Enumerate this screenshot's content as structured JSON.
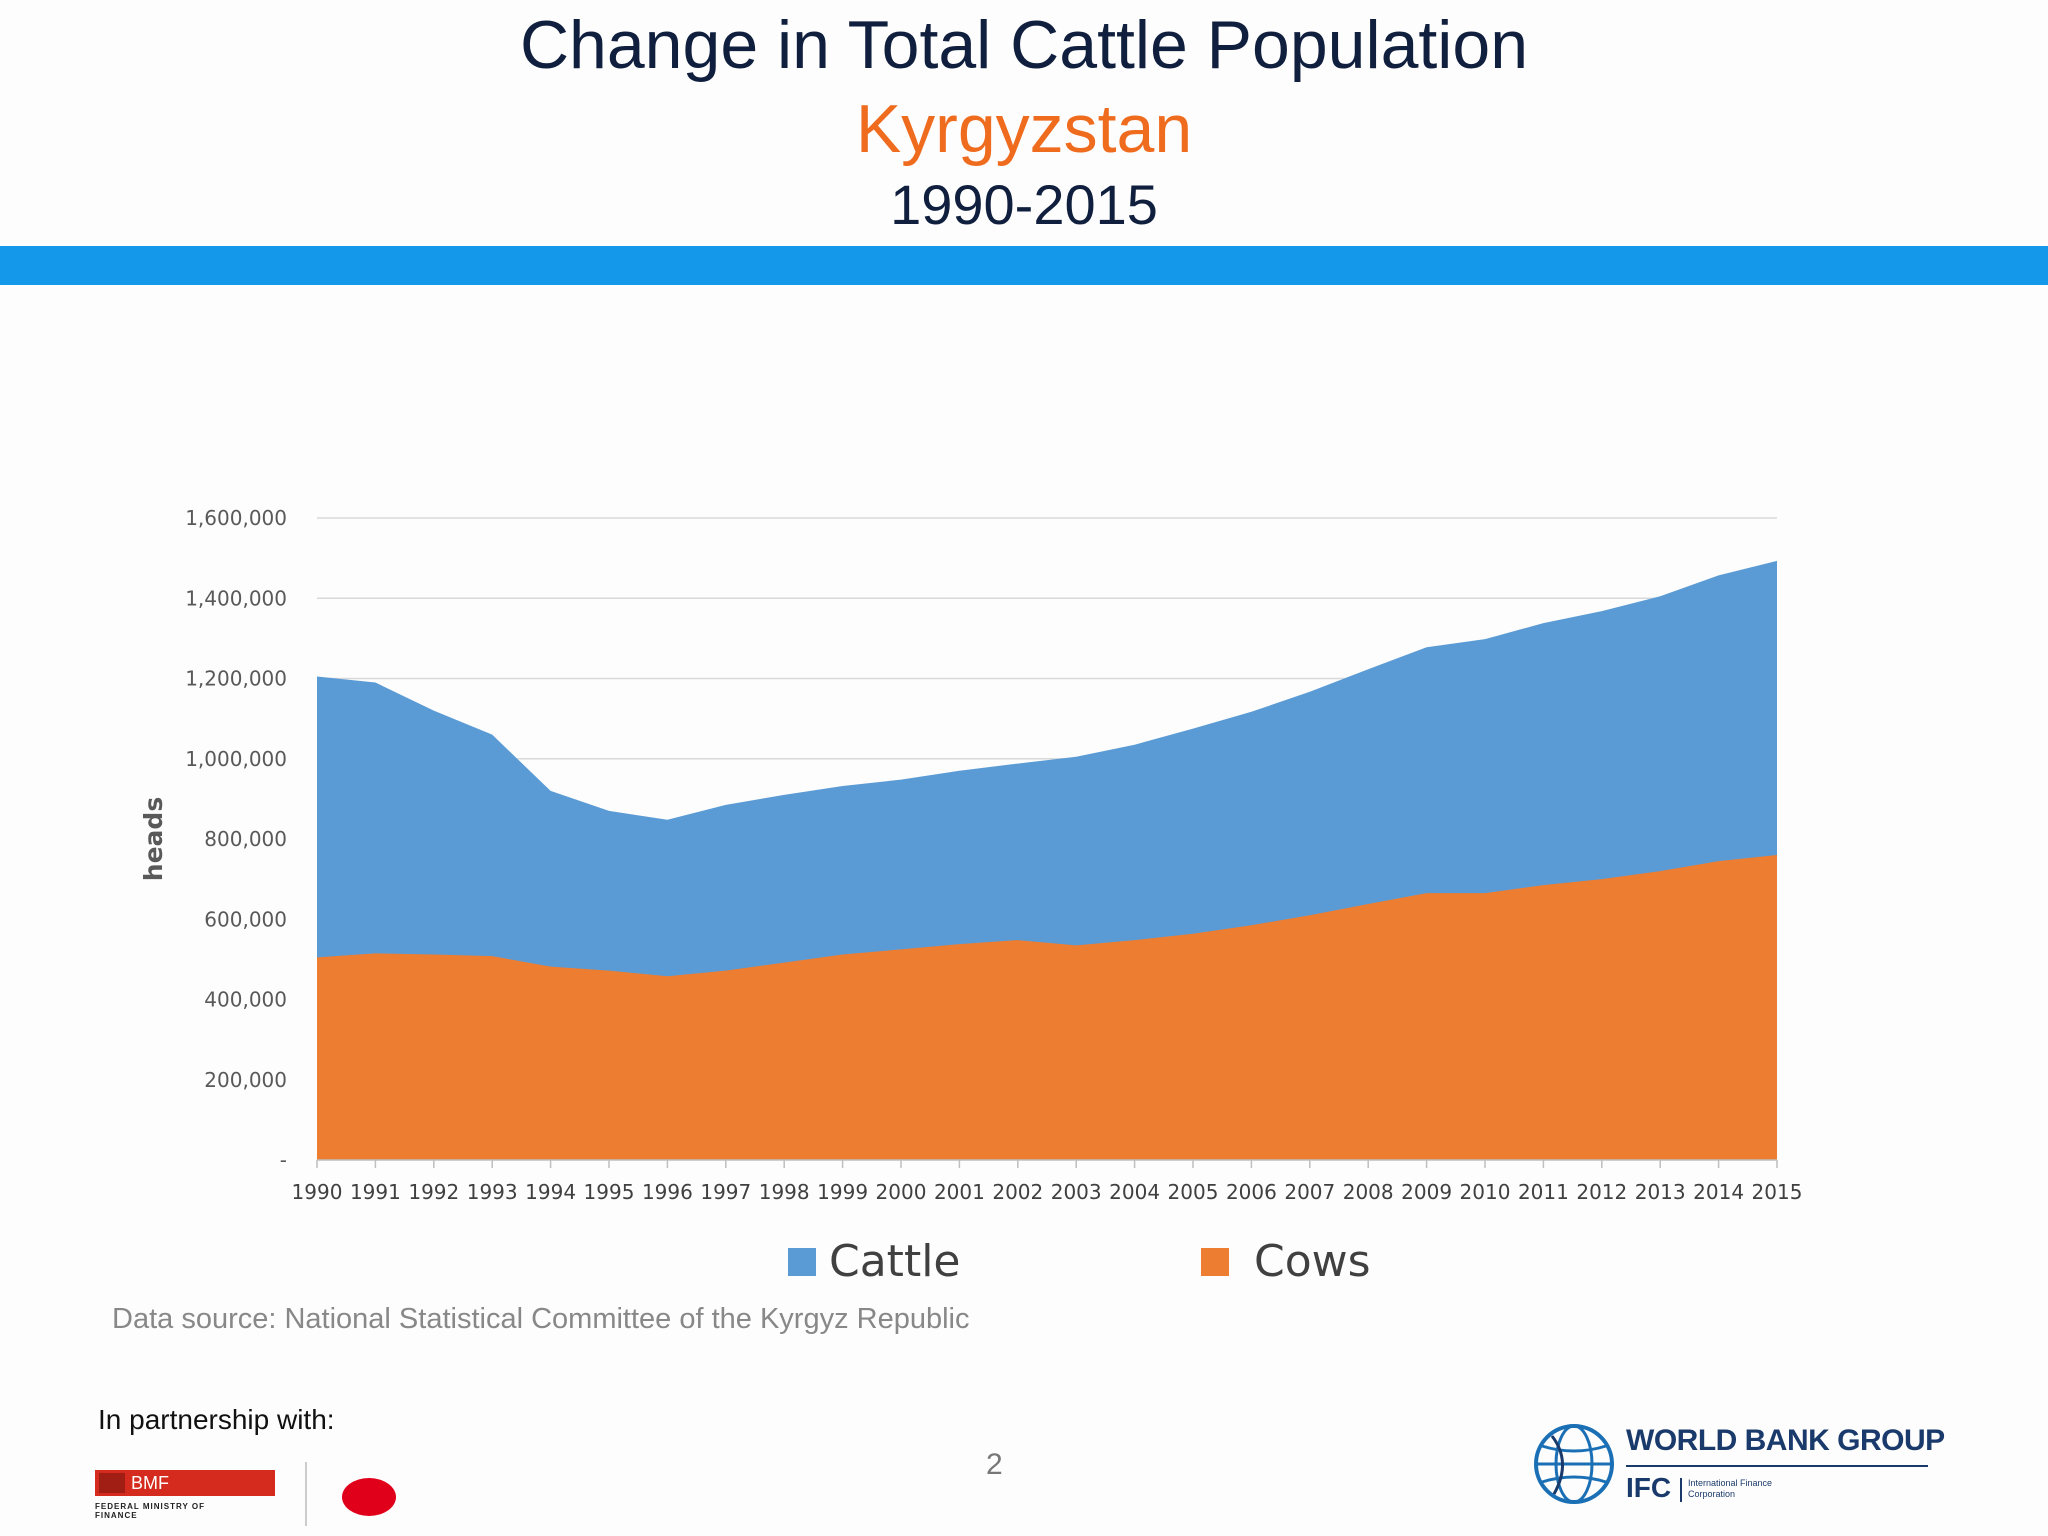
{
  "header": {
    "title": "Change in Total Cattle Population",
    "country": "Kyrgyzstan",
    "years": "1990-2015"
  },
  "colors": {
    "band": "#1499ea",
    "cattle": "#5b9bd5",
    "cows": "#ed7d31",
    "title": "#0f1f3d",
    "country": "#ef6b1e"
  },
  "chart_data": {
    "type": "area",
    "title": "",
    "xlabel": "",
    "ylabel": "heads",
    "ylim": [
      0,
      1600000
    ],
    "yticks": [
      0,
      200000,
      400000,
      600000,
      800000,
      1000000,
      1200000,
      1400000,
      1600000
    ],
    "ytick_labels": [
      "-",
      "200,000",
      "400,000",
      "600,000",
      "800,000",
      "1,000,000",
      "1,200,000",
      "1,400,000",
      "1,600,000"
    ],
    "grid": true,
    "legend_position": "bottom",
    "categories": [
      "1990",
      "1991",
      "1992",
      "1993",
      "1994",
      "1995",
      "1996",
      "1997",
      "1998",
      "1999",
      "2000",
      "2001",
      "2002",
      "2003",
      "2004",
      "2005",
      "2006",
      "2007",
      "2008",
      "2009",
      "2010",
      "2011",
      "2012",
      "2013",
      "2014",
      "2015"
    ],
    "series": [
      {
        "name": "Cattle",
        "color": "#5b9bd5",
        "values": [
          1205000,
          1190000,
          1120000,
          1060000,
          920000,
          870000,
          848000,
          885000,
          910000,
          932000,
          948000,
          970000,
          988000,
          1005000,
          1035000,
          1075000,
          1117000,
          1167000,
          1223000,
          1278000,
          1298000,
          1338000,
          1368000,
          1405000,
          1457000,
          1493000
        ]
      },
      {
        "name": "Cows",
        "color": "#ed7d31",
        "values": [
          505000,
          515000,
          512000,
          508000,
          482000,
          472000,
          458000,
          472000,
          492000,
          512000,
          525000,
          538000,
          548000,
          535000,
          548000,
          564000,
          585000,
          610000,
          638000,
          665000,
          665000,
          685000,
          700000,
          720000,
          745000,
          760000
        ]
      }
    ]
  },
  "footer": {
    "source": "Data source: National Statistical Committee of the Kyrgyz Republic",
    "partnership": "In partnership with:",
    "page_number": "2",
    "bmf_short": "BMF",
    "bmf_full": "FEDERAL MINISTRY OF FINANCE",
    "wbg_name": "WORLD BANK GROUP",
    "ifc_short": "IFC",
    "ifc_full": "International Finance Corporation"
  }
}
